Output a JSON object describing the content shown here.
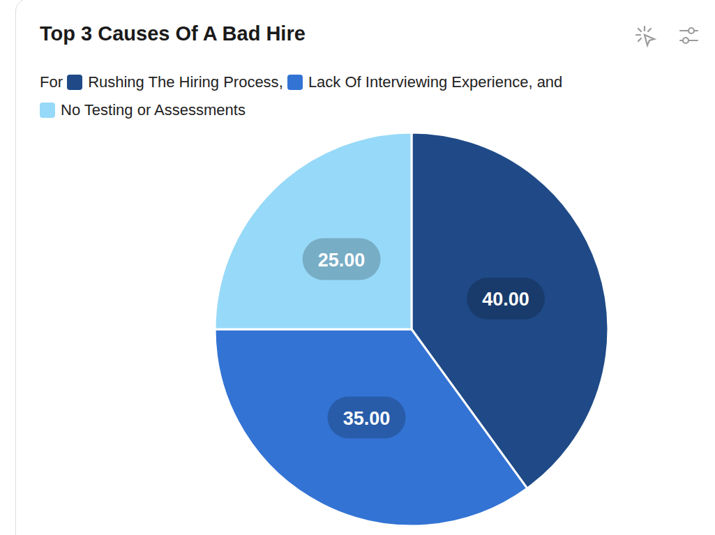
{
  "chart_data": {
    "type": "pie",
    "title": "Top 3 Causes Of A Bad Hire",
    "legend_prefix": "For",
    "legend_separator": ",",
    "legend_conjunction": "and",
    "categories": [
      "Rushing The Hiring Process",
      "Lack Of Interviewing Experience",
      "No Testing or Assessments"
    ],
    "values": [
      40,
      35,
      25
    ],
    "value_labels": [
      "40.00",
      "35.00",
      "25.00"
    ],
    "colors": [
      "#1f4a87",
      "#3373d4",
      "#97d9f8"
    ],
    "data_labels": true,
    "legend": "top"
  }
}
